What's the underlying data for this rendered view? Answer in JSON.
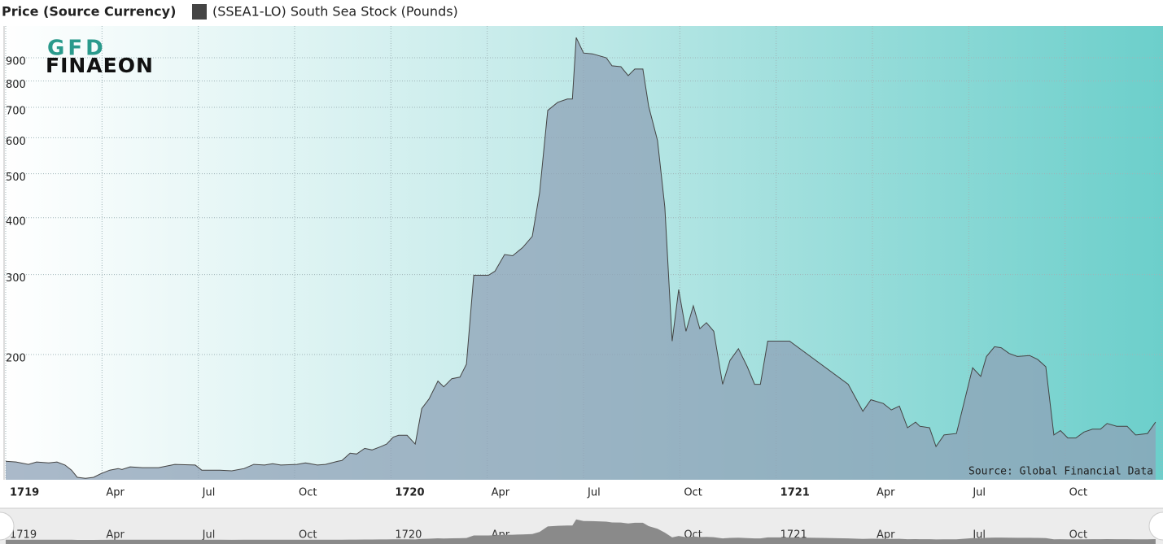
{
  "chart_data": {
    "type": "area",
    "y_axis_title": "Price (Source Currency)",
    "logo_text": [
      "GFD",
      "FINAEON"
    ],
    "annotation": "Source: Global Financial Data",
    "y_scale": "log",
    "grid": true,
    "xlim": [
      1719,
      1722
    ],
    "xticks": [
      1719,
      {
        "value": 1719.25,
        "label": "Apr"
      },
      {
        "value": 1719.5,
        "label": "Jul"
      },
      {
        "value": 1719.75,
        "label": "Oct"
      },
      1720,
      {
        "value": 1720.25,
        "label": "Apr"
      },
      {
        "value": 1720.5,
        "label": "Jul"
      },
      {
        "value": 1720.75,
        "label": "Oct"
      },
      1721,
      {
        "value": 1721.25,
        "label": "Apr"
      },
      {
        "value": 1721.5,
        "label": "Jul"
      },
      {
        "value": 1721.75,
        "label": "Oct"
      },
      1722
    ],
    "ylim": [
      106,
      1057
    ],
    "yticks": [
      200,
      300,
      400,
      500,
      600,
      700,
      800,
      900
    ],
    "x": [
      1719.0,
      1719.027,
      1719.059,
      1719.08,
      1719.112,
      1719.133,
      1719.154,
      1719.171,
      1719.186,
      1719.207,
      1719.228,
      1719.249,
      1719.27,
      1719.292,
      1719.302,
      1719.323,
      1719.355,
      1719.397,
      1719.439,
      1719.492,
      1719.509,
      1719.556,
      1719.587,
      1719.619,
      1719.644,
      1719.672,
      1719.693,
      1719.714,
      1719.756,
      1719.778,
      1719.809,
      1719.83,
      1719.862,
      1719.873,
      1719.894,
      1719.911,
      1719.932,
      1719.951,
      1719.974,
      1719.989,
      1720.006,
      1720.02,
      1720.042,
      1720.063,
      1720.08,
      1720.099,
      1720.122,
      1720.137,
      1720.158,
      1720.179,
      1720.196,
      1720.215,
      1720.253,
      1720.27,
      1720.295,
      1720.316,
      1720.342,
      1720.367,
      1720.386,
      1720.407,
      1720.433,
      1720.458,
      1720.471,
      1720.481,
      1720.5,
      1720.523,
      1720.559,
      1720.574,
      1720.597,
      1720.616,
      1720.633,
      1720.654,
      1720.669,
      1720.692,
      1720.711,
      1720.73,
      1720.747,
      1720.766,
      1720.785,
      1720.802,
      1720.819,
      1720.838,
      1720.861,
      1720.88,
      1720.902,
      1720.925,
      1720.944,
      1720.959,
      1720.978,
      1721.003,
      1721.035,
      1721.187,
      1721.225,
      1721.246,
      1721.278,
      1721.299,
      1721.32,
      1721.341,
      1721.362,
      1721.373,
      1721.398,
      1721.415,
      1721.436,
      1721.468,
      1721.51,
      1721.531,
      1721.546,
      1721.567,
      1721.584,
      1721.605,
      1721.626,
      1721.658,
      1721.679,
      1721.7,
      1721.721,
      1721.738,
      1721.757,
      1721.778,
      1721.799,
      1721.821,
      1721.842,
      1721.859,
      1721.884,
      1721.911,
      1721.933,
      1721.964,
      1721.985
    ],
    "series": [
      {
        "name": "(SSEA1-LO) South Sea Stock (Pounds)",
        "color": "#444444",
        "area_color": "#8ea2b7",
        "values": [
          116.4,
          116.0,
          114.6,
          116.0,
          115.5,
          116.0,
          114.2,
          111.3,
          107.3,
          106.8,
          107.3,
          109.5,
          111.3,
          112.2,
          111.7,
          113.2,
          112.7,
          112.7,
          114.6,
          114.2,
          111.3,
          111.3,
          110.9,
          112.2,
          114.6,
          114.2,
          115.0,
          114.2,
          114.6,
          115.5,
          114.2,
          114.6,
          116.4,
          116.9,
          121.3,
          120.8,
          124.3,
          123.3,
          125.4,
          127.0,
          131.6,
          132.8,
          132.8,
          127.0,
          152,
          159.7,
          174.8,
          169.8,
          176.9,
          178.3,
          190.4,
          298.9,
          298.9,
          305,
          332,
          330,
          344,
          364,
          454,
          689,
          718,
          730,
          730,
          997,
          922,
          918,
          900,
          864,
          860,
          822,
          850,
          850,
          704,
          592,
          422,
          214,
          278,
          225,
          256,
          228,
          235,
          225,
          172,
          194,
          206,
          188,
          172,
          172,
          214,
          214,
          214,
          172,
          150,
          159,
          156,
          151,
          154,
          138,
          142,
          139,
          138,
          125.4,
          133,
          134,
          187,
          179,
          198,
          208,
          207,
          201,
          198,
          199,
          195,
          188,
          133,
          136,
          131,
          131,
          135,
          137,
          137,
          141,
          139,
          139,
          133,
          134,
          142
        ]
      }
    ]
  }
}
